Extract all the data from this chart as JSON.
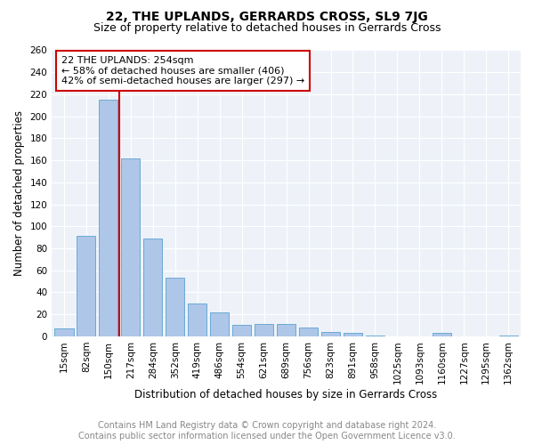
{
  "title": "22, THE UPLANDS, GERRARDS CROSS, SL9 7JG",
  "subtitle": "Size of property relative to detached houses in Gerrards Cross",
  "xlabel": "Distribution of detached houses by size in Gerrards Cross",
  "ylabel": "Number of detached properties",
  "categories": [
    "15sqm",
    "82sqm",
    "150sqm",
    "217sqm",
    "284sqm",
    "352sqm",
    "419sqm",
    "486sqm",
    "554sqm",
    "621sqm",
    "689sqm",
    "756sqm",
    "823sqm",
    "891sqm",
    "958sqm",
    "1025sqm",
    "1093sqm",
    "1160sqm",
    "1227sqm",
    "1295sqm",
    "1362sqm"
  ],
  "values": [
    7,
    91,
    215,
    162,
    89,
    53,
    30,
    22,
    10,
    11,
    11,
    8,
    4,
    3,
    1,
    0,
    0,
    3,
    0,
    0,
    1
  ],
  "bar_color": "#aec6e8",
  "bar_edge_color": "#6aaad4",
  "annotation_text_line1": "22 THE UPLANDS: 254sqm",
  "annotation_text_line2": "← 58% of detached houses are smaller (406)",
  "annotation_text_line3": "42% of semi-detached houses are larger (297) →",
  "annotation_box_color": "#ffffff",
  "annotation_box_edge": "#cc0000",
  "vline_color": "#cc0000",
  "vline_x": 2.5,
  "ylim": [
    0,
    260
  ],
  "yticks": [
    0,
    20,
    40,
    60,
    80,
    100,
    120,
    140,
    160,
    180,
    200,
    220,
    240,
    260
  ],
  "bg_color": "#eef2f8",
  "footer_line1": "Contains HM Land Registry data © Crown copyright and database right 2024.",
  "footer_line2": "Contains public sector information licensed under the Open Government Licence v3.0.",
  "title_fontsize": 10,
  "subtitle_fontsize": 9,
  "xlabel_fontsize": 8.5,
  "ylabel_fontsize": 8.5,
  "tick_fontsize": 7.5,
  "annotation_fontsize": 8,
  "footer_fontsize": 7
}
